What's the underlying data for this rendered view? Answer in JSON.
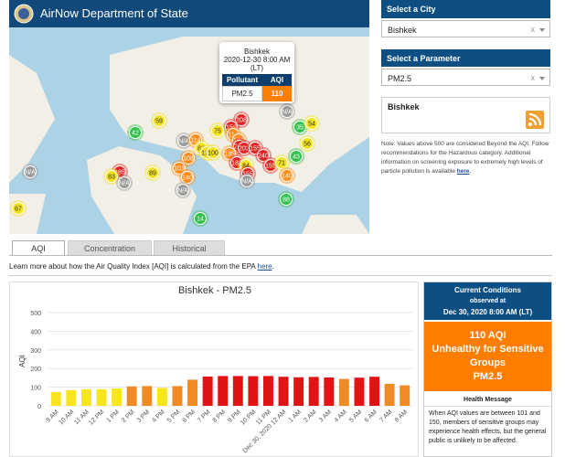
{
  "header": {
    "title": "AirNow Department of State"
  },
  "map": {
    "markers": [
      {
        "label": "42",
        "color": "#33c04c"
      },
      {
        "label": "59",
        "color": "#f2e21f"
      },
      {
        "label": "N/A",
        "color": "#9a9a9a"
      },
      {
        "label": "35",
        "color": "#33c04c"
      },
      {
        "label": "54",
        "color": "#f2e21f"
      },
      {
        "label": "56",
        "color": "#f2e21f"
      },
      {
        "label": "208",
        "color": "#e02424"
      },
      {
        "label": "159",
        "color": "#e02424"
      },
      {
        "label": "75",
        "color": "#f2e21f"
      },
      {
        "label": "117",
        "color": "#ff8c1a"
      },
      {
        "label": "141",
        "color": "#ff8c1a"
      },
      {
        "label": "245",
        "color": "#e02424"
      },
      {
        "label": "N/A",
        "color": "#9a9a9a"
      },
      {
        "label": "114",
        "color": "#ff8c1a"
      },
      {
        "label": "83",
        "color": "#f2e21f"
      },
      {
        "label": "123",
        "color": "#f2e21f"
      },
      {
        "label": "100",
        "color": "#f2e21f"
      },
      {
        "label": "108",
        "color": "#ff8c1a"
      },
      {
        "label": "135",
        "color": "#ff8c1a"
      },
      {
        "label": "202",
        "color": "#e02424"
      },
      {
        "label": "155",
        "color": "#e02424"
      },
      {
        "label": "182",
        "color": "#e02424"
      },
      {
        "label": "84",
        "color": "#f2e21f"
      },
      {
        "label": "240",
        "color": "#e02424"
      },
      {
        "label": "155",
        "color": "#e02424"
      },
      {
        "label": "71",
        "color": "#f2e21f"
      },
      {
        "label": "43",
        "color": "#33c04c"
      },
      {
        "label": "155",
        "color": "#e02424"
      },
      {
        "label": "103",
        "color": "#ff8c1a"
      },
      {
        "label": "140",
        "color": "#ff8c1a"
      },
      {
        "label": "185",
        "color": "#e02424"
      },
      {
        "label": "83",
        "color": "#f2e21f"
      },
      {
        "label": "N/A",
        "color": "#9a9a9a"
      },
      {
        "label": "89",
        "color": "#f2e21f"
      },
      {
        "label": "N/A",
        "color": "#9a9a9a"
      },
      {
        "label": "67",
        "color": "#f2e21f"
      },
      {
        "label": "140",
        "color": "#ff8c1a"
      },
      {
        "label": "N/A",
        "color": "#9a9a9a"
      },
      {
        "label": "88",
        "color": "#33c04c"
      },
      {
        "label": "14",
        "color": "#33c04c"
      },
      {
        "label": "N/A",
        "color": "#9a9a9a"
      }
    ],
    "popup": {
      "city": "Bishkek",
      "time": "2020-12-30 8:00 AM",
      "zone": "(LT)",
      "headers": [
        "Pollutant",
        "AQI"
      ],
      "pollutant": "PM2.5",
      "aqi": 110
    }
  },
  "city_select": {
    "title": "Select a City",
    "value": "Bishkek",
    "clear": "x"
  },
  "parameter_select": {
    "title": "Select a Parameter",
    "value": "PM2.5",
    "clear": "x"
  },
  "city_box": {
    "name": "Bishkek"
  },
  "note": {
    "text": "Note: Values above 500 are considered Beyond the AQI. Follow recommendations for the Hazardous category. Additional information on screening exposure to extremely high levels of particle pollution is available ",
    "link": "here",
    "end": "."
  },
  "tabs": [
    "AQI",
    "Concentration",
    "Historical"
  ],
  "learn": {
    "text": "Learn more about how the Air Quality Index [AQI] is calculated from the EPA ",
    "link": "here",
    "end": "."
  },
  "chart_data": {
    "type": "bar",
    "title": "Bishkek - PM2.5",
    "y_label": "AQI",
    "categories": [
      "9 AM",
      "10 AM",
      "11 AM",
      "12 PM",
      "1 PM",
      "2 PM",
      "3 PM",
      "4 PM",
      "5 PM",
      "6 PM",
      "7 PM",
      "8 PM",
      "9 PM",
      "10 PM",
      "11 PM",
      "Dec 30, 2020 12 AM",
      "1 AM",
      "2 AM",
      "3 AM",
      "4 AM",
      "5 AM",
      "6 AM",
      "7 AM",
      "8 AM"
    ],
    "values": [
      74,
      84,
      89,
      89,
      93,
      104,
      106,
      96,
      106,
      140,
      157,
      160,
      160,
      159,
      160,
      156,
      153,
      155,
      152,
      144,
      151,
      156,
      118,
      110
    ],
    "colors": [
      "#f7e51e",
      "#f7e51e",
      "#f7e51e",
      "#f7e51e",
      "#f7e51e",
      "#f08a24",
      "#f08a24",
      "#f7e51e",
      "#f08a24",
      "#f08a24",
      "#e01414",
      "#e01414",
      "#e01414",
      "#e01414",
      "#e01414",
      "#e01414",
      "#e01414",
      "#e01414",
      "#e01414",
      "#f08a24",
      "#e01414",
      "#e01414",
      "#f08a24",
      "#f08a24"
    ],
    "ylim": [
      0,
      500
    ],
    "yticks": [
      0,
      100,
      200,
      300,
      400,
      500
    ],
    "grid": true
  },
  "current": {
    "title": "Current Conditions",
    "observed": "observed at",
    "time": "Dec 30, 2020 8:00 AM (LT)",
    "aqi": "110 AQI",
    "category": "Unhealthy for Sensitive Groups",
    "parameter": "PM2.5",
    "health_title": "Health Message",
    "health_text": "When AQI values are between 101 and 150, members of sensitive groups may experience health effects, but the general public is unlikely to be affected."
  }
}
